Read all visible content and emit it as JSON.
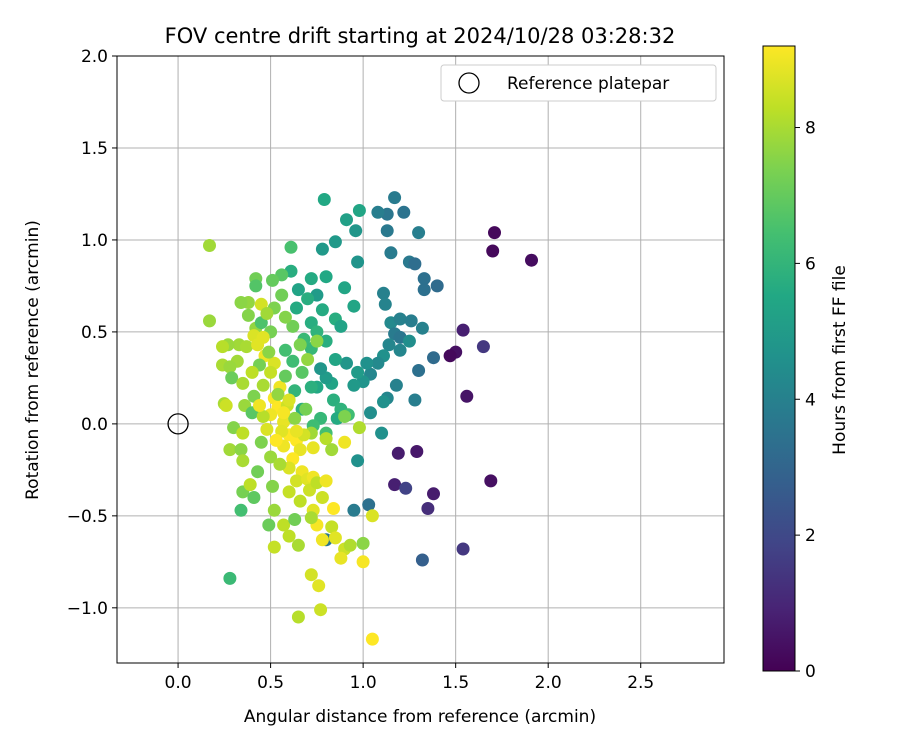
{
  "chart_data": {
    "type": "scatter",
    "title": "FOV centre drift starting at 2024/10/28 03:28:32",
    "xlabel": "Angular distance from reference (arcmin)",
    "ylabel": "Rotation from reference (arcmin)",
    "xlim": [
      -0.33,
      2.95
    ],
    "ylim": [
      -1.3,
      2.0
    ],
    "xticks": [
      "0.0",
      "0.5",
      "1.0",
      "1.5",
      "2.0",
      "2.5"
    ],
    "yticks": [
      "−1.0",
      "−0.5",
      "0.0",
      "0.5",
      "1.0",
      "1.5",
      "2.0"
    ],
    "grid": true,
    "legend": {
      "placement": "top-right",
      "entries": [
        "Reference platepar"
      ]
    },
    "reference_point": {
      "x": 0.0,
      "y": 0.0
    },
    "colorbar": {
      "label": "Hours from first FF file",
      "colormap": "viridis",
      "range": [
        0,
        9.2
      ],
      "ticks": [
        "0",
        "2",
        "4",
        "6",
        "8"
      ]
    },
    "points": [
      [
        1.71,
        1.04,
        0.2
      ],
      [
        1.7,
        0.94,
        0.2
      ],
      [
        1.91,
        0.89,
        0.3
      ],
      [
        1.69,
        -0.31,
        0.4
      ],
      [
        1.54,
        0.51,
        0.8
      ],
      [
        1.65,
        0.42,
        1.5
      ],
      [
        1.5,
        0.39,
        0.4
      ],
      [
        1.47,
        0.37,
        0.2
      ],
      [
        1.56,
        0.15,
        0.5
      ],
      [
        1.54,
        -0.68,
        1.5
      ],
      [
        1.38,
        -0.38,
        0.7
      ],
      [
        1.35,
        -0.46,
        1.2
      ],
      [
        1.32,
        -0.74,
        2.8
      ],
      [
        1.19,
        -0.16,
        0.7
      ],
      [
        1.29,
        -0.15,
        0.6
      ],
      [
        1.17,
        -0.33,
        0.8
      ],
      [
        1.23,
        -0.35,
        1.8
      ],
      [
        1.17,
        1.23,
        3.8
      ],
      [
        1.22,
        1.15,
        3.5
      ],
      [
        1.13,
        1.14,
        3.6
      ],
      [
        1.08,
        1.15,
        3.9
      ],
      [
        1.3,
        1.04,
        3.9
      ],
      [
        1.25,
        0.88,
        3.7
      ],
      [
        1.28,
        0.87,
        3.3
      ],
      [
        1.33,
        0.79,
        3.4
      ],
      [
        1.4,
        0.75,
        3.2
      ],
      [
        1.33,
        0.73,
        3.4
      ],
      [
        1.13,
        1.05,
        3.7
      ],
      [
        1.15,
        0.93,
        3.8
      ],
      [
        1.11,
        0.71,
        4.0
      ],
      [
        1.12,
        0.65,
        4.1
      ],
      [
        1.15,
        0.55,
        4.3
      ],
      [
        1.2,
        0.57,
        4.0
      ],
      [
        1.26,
        0.56,
        3.9
      ],
      [
        1.32,
        0.52,
        4.0
      ],
      [
        1.17,
        0.49,
        3.8
      ],
      [
        1.2,
        0.47,
        3.6
      ],
      [
        1.25,
        0.45,
        4.5
      ],
      [
        1.2,
        0.4,
        4.2
      ],
      [
        1.14,
        0.43,
        4.2
      ],
      [
        1.11,
        0.37,
        4.6
      ],
      [
        1.08,
        0.33,
        4.3
      ],
      [
        1.38,
        0.36,
        3.2
      ],
      [
        1.3,
        0.29,
        3.4
      ],
      [
        1.18,
        0.21,
        4.0
      ],
      [
        1.13,
        0.14,
        4.2
      ],
      [
        1.11,
        0.12,
        4.6
      ],
      [
        1.28,
        0.13,
        3.9
      ],
      [
        1.04,
        0.27,
        4.2
      ],
      [
        1.0,
        0.23,
        4.7
      ],
      [
        0.95,
        0.21,
        4.9
      ],
      [
        0.97,
        0.28,
        5.0
      ],
      [
        1.02,
        0.33,
        4.6
      ],
      [
        0.91,
        0.33,
        4.8
      ],
      [
        1.04,
        0.06,
        4.5
      ],
      [
        1.1,
        -0.05,
        4.6
      ],
      [
        0.97,
        -0.2,
        4.6
      ],
      [
        1.03,
        -0.44,
        3.4
      ],
      [
        0.95,
        -0.47,
        3.8
      ],
      [
        0.8,
        -0.63,
        3.6
      ],
      [
        0.79,
        1.22,
        5.5
      ],
      [
        0.91,
        1.11,
        5.2
      ],
      [
        0.98,
        1.16,
        5.4
      ],
      [
        0.96,
        1.05,
        4.8
      ],
      [
        0.85,
        0.99,
        4.9
      ],
      [
        0.78,
        0.95,
        4.9
      ],
      [
        0.97,
        0.88,
        4.7
      ],
      [
        0.9,
        0.74,
        5.4
      ],
      [
        0.95,
        0.64,
        5.4
      ],
      [
        0.85,
        0.57,
        5.7
      ],
      [
        0.88,
        0.53,
        5.3
      ],
      [
        0.75,
        0.7,
        5.0
      ],
      [
        0.72,
        0.79,
        5.6
      ],
      [
        0.8,
        0.8,
        5.5
      ],
      [
        0.78,
        0.62,
        5.6
      ],
      [
        0.7,
        0.68,
        5.7
      ],
      [
        0.65,
        0.73,
        5.3
      ],
      [
        0.72,
        0.55,
        5.7
      ],
      [
        0.75,
        0.5,
        5.9
      ],
      [
        0.8,
        0.45,
        5.7
      ],
      [
        0.72,
        0.41,
        6.1
      ],
      [
        0.68,
        0.46,
        6.2
      ],
      [
        0.64,
        0.63,
        5.6
      ],
      [
        0.85,
        0.35,
        5.4
      ],
      [
        0.83,
        0.22,
        5.3
      ],
      [
        0.8,
        0.25,
        5.0
      ],
      [
        0.77,
        0.3,
        4.8
      ],
      [
        0.75,
        0.2,
        5.5
      ],
      [
        0.72,
        0.2,
        5.8
      ],
      [
        0.84,
        0.13,
        5.8
      ],
      [
        0.88,
        0.08,
        5.9
      ],
      [
        0.92,
        0.05,
        6.3
      ],
      [
        0.86,
        0.03,
        5.6
      ],
      [
        0.77,
        0.03,
        6.1
      ],
      [
        0.8,
        -0.05,
        6.4
      ],
      [
        0.73,
        -0.01,
        6.3
      ],
      [
        0.67,
        0.08,
        5.8
      ],
      [
        0.63,
        0.18,
        6.0
      ],
      [
        0.62,
        0.34,
        6.3
      ],
      [
        0.58,
        0.4,
        6.4
      ],
      [
        0.61,
        0.83,
        5.7
      ],
      [
        0.61,
        0.96,
        6.5
      ],
      [
        0.56,
        0.81,
        6.8
      ],
      [
        0.51,
        0.78,
        7.0
      ],
      [
        0.42,
        0.79,
        7.2
      ],
      [
        0.42,
        0.75,
        6.7
      ],
      [
        0.38,
        0.66,
        7.7
      ],
      [
        0.34,
        0.66,
        7.6
      ],
      [
        0.38,
        0.59,
        7.5
      ],
      [
        0.42,
        0.52,
        7.7
      ],
      [
        0.45,
        0.55,
        6.6
      ],
      [
        0.5,
        0.5,
        7.3
      ],
      [
        0.33,
        0.43,
        7.9
      ],
      [
        0.27,
        0.43,
        7.8
      ],
      [
        0.24,
        0.42,
        8.2
      ],
      [
        0.37,
        0.42,
        8.0
      ],
      [
        0.32,
        0.34,
        7.9
      ],
      [
        0.24,
        0.32,
        8.0
      ],
      [
        0.28,
        0.31,
        7.8
      ],
      [
        0.29,
        0.25,
        7.1
      ],
      [
        0.35,
        0.22,
        8.0
      ],
      [
        0.36,
        0.1,
        7.8
      ],
      [
        0.25,
        0.11,
        8.0
      ],
      [
        0.26,
        0.1,
        8.5
      ],
      [
        0.3,
        -0.02,
        7.5
      ],
      [
        0.35,
        -0.05,
        8.3
      ],
      [
        0.28,
        -0.14,
        7.9
      ],
      [
        0.34,
        -0.14,
        7.6
      ],
      [
        0.35,
        -0.2,
        8.0
      ],
      [
        0.43,
        -0.26,
        7.2
      ],
      [
        0.35,
        -0.37,
        7.3
      ],
      [
        0.41,
        -0.4,
        6.9
      ],
      [
        0.39,
        -0.33,
        8.3
      ],
      [
        0.51,
        -0.34,
        7.5
      ],
      [
        0.52,
        -0.47,
        7.8
      ],
      [
        0.49,
        -0.55,
        7.1
      ],
      [
        0.57,
        -0.55,
        8.3
      ],
      [
        0.52,
        -0.67,
        8.4
      ],
      [
        0.6,
        -0.61,
        8.3
      ],
      [
        0.65,
        -0.66,
        8.0
      ],
      [
        0.34,
        -0.47,
        6.4
      ],
      [
        0.28,
        -0.84,
        6.2
      ],
      [
        0.17,
        0.97,
        7.9
      ],
      [
        0.17,
        0.56,
        7.8
      ],
      [
        0.45,
        0.65,
        8.6
      ],
      [
        0.41,
        0.48,
        8.7
      ],
      [
        0.46,
        0.47,
        8.8
      ],
      [
        0.43,
        0.43,
        8.8
      ],
      [
        0.47,
        0.37,
        9.0
      ],
      [
        0.52,
        0.33,
        8.7
      ],
      [
        0.5,
        0.28,
        8.4
      ],
      [
        0.55,
        0.2,
        9.0
      ],
      [
        0.52,
        0.14,
        9.1
      ],
      [
        0.54,
        0.09,
        9.2
      ],
      [
        0.5,
        0.05,
        9.0
      ],
      [
        0.57,
        0.01,
        8.9
      ],
      [
        0.6,
        -0.06,
        9.2
      ],
      [
        0.64,
        -0.09,
        9.2
      ],
      [
        0.57,
        -0.12,
        9.0
      ],
      [
        0.66,
        -0.14,
        8.9
      ],
      [
        0.62,
        -0.19,
        9.2
      ],
      [
        0.6,
        -0.24,
        8.7
      ],
      [
        0.67,
        -0.26,
        9.0
      ],
      [
        0.64,
        -0.31,
        8.6
      ],
      [
        0.7,
        -0.3,
        8.8
      ],
      [
        0.73,
        -0.29,
        9.0
      ],
      [
        0.71,
        -0.36,
        8.5
      ],
      [
        0.75,
        -0.32,
        8.3
      ],
      [
        0.8,
        -0.31,
        9.0
      ],
      [
        0.78,
        -0.4,
        8.5
      ],
      [
        0.73,
        -0.47,
        8.8
      ],
      [
        0.75,
        -0.55,
        9.1
      ],
      [
        0.72,
        -0.51,
        8.0
      ],
      [
        0.84,
        -0.46,
        9.2
      ],
      [
        0.83,
        -0.56,
        8.4
      ],
      [
        0.78,
        -0.63,
        9.0
      ],
      [
        0.85,
        -0.62,
        8.8
      ],
      [
        0.9,
        -0.68,
        8.5
      ],
      [
        0.88,
        -0.73,
        8.9
      ],
      [
        0.93,
        -0.66,
        8.1
      ],
      [
        1.0,
        -0.65,
        7.6
      ],
      [
        1.0,
        -0.75,
        9.1
      ],
      [
        1.05,
        -0.5,
        8.7
      ],
      [
        1.05,
        -1.17,
        9.2
      ],
      [
        0.77,
        -1.01,
        8.5
      ],
      [
        0.72,
        -0.82,
        8.6
      ],
      [
        0.76,
        -0.88,
        8.8
      ],
      [
        0.65,
        -1.05,
        8.2
      ],
      [
        0.73,
        -0.13,
        8.9
      ],
      [
        0.8,
        -0.08,
        8.2
      ],
      [
        0.83,
        -0.14,
        7.9
      ],
      [
        0.9,
        -0.1,
        9.0
      ],
      [
        0.98,
        -0.02,
        8.1
      ],
      [
        0.9,
        0.04,
        7.4
      ],
      [
        0.62,
        0.53,
        7.2
      ],
      [
        0.58,
        0.58,
        7.5
      ],
      [
        0.56,
        0.7,
        7.2
      ],
      [
        0.52,
        0.63,
        7.4
      ],
      [
        0.48,
        0.6,
        7.9
      ],
      [
        0.49,
        0.39,
        7.6
      ],
      [
        0.44,
        0.32,
        7.3
      ],
      [
        0.4,
        0.28,
        8.3
      ],
      [
        0.46,
        0.21,
        8.0
      ],
      [
        0.41,
        0.15,
        7.4
      ],
      [
        0.4,
        0.06,
        6.8
      ],
      [
        0.45,
        -0.1,
        7.4
      ],
      [
        0.5,
        -0.18,
        7.8
      ],
      [
        0.55,
        -0.22,
        8.0
      ],
      [
        0.6,
        -0.37,
        8.4
      ],
      [
        0.66,
        -0.42,
        8.3
      ],
      [
        0.63,
        -0.52,
        7.2
      ],
      [
        0.66,
        0.43,
        7.4
      ],
      [
        0.7,
        0.35,
        7.7
      ],
      [
        0.75,
        0.45,
        7.6
      ],
      [
        0.69,
        0.08,
        7.3
      ],
      [
        0.63,
        0.03,
        7.6
      ],
      [
        0.67,
        0.28,
        6.8
      ],
      [
        0.58,
        0.26,
        7.0
      ],
      [
        0.54,
        0.16,
        7.7
      ],
      [
        0.72,
        -0.05,
        7.9
      ],
      [
        0.46,
        0.04,
        8.2
      ],
      [
        0.59,
        0.1,
        8.5
      ],
      [
        0.56,
        -0.04,
        8.8
      ],
      [
        0.68,
        -0.06,
        8.6
      ],
      [
        0.64,
        -0.04,
        8.9
      ],
      [
        0.6,
        0.13,
        8.7
      ],
      [
        0.57,
        0.06,
        9.1
      ],
      [
        0.53,
        -0.09,
        9.2
      ],
      [
        0.48,
        -0.03,
        8.7
      ],
      [
        0.44,
        0.1,
        9.0
      ]
    ]
  }
}
